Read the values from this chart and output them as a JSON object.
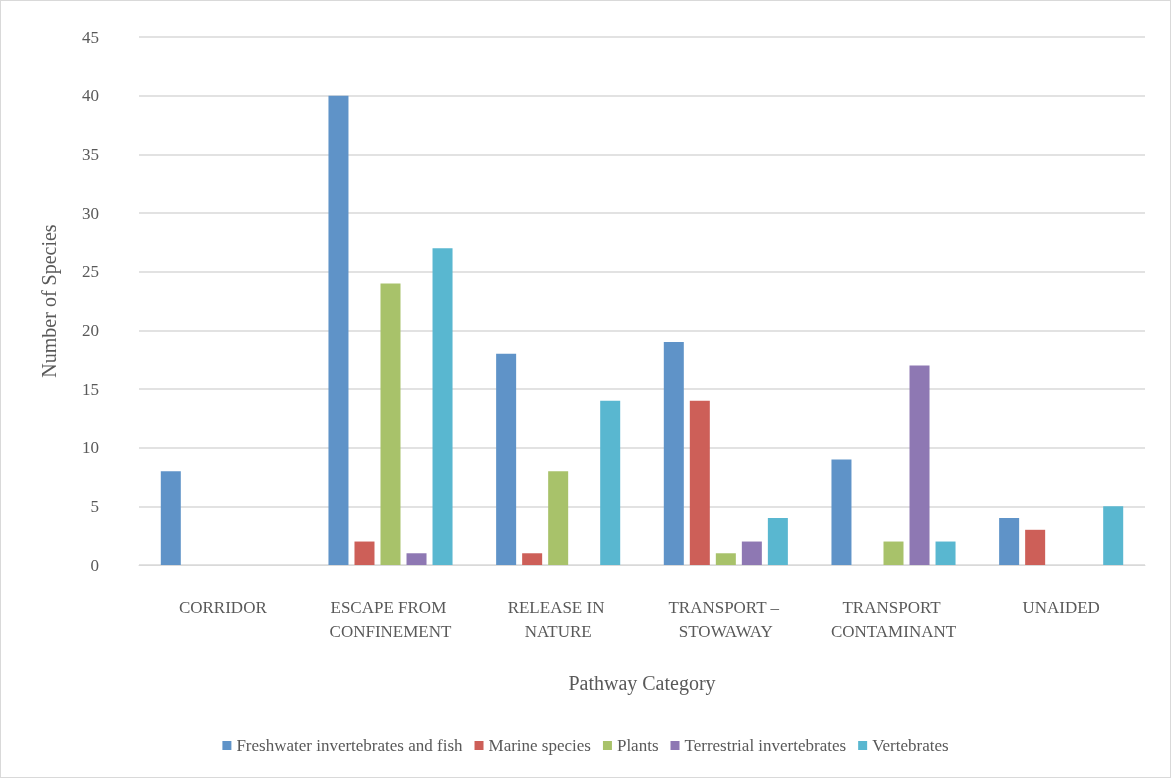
{
  "chart_data": {
    "type": "bar",
    "xlabel": "Pathway Category",
    "ylabel": "Number of Species",
    "categories": [
      "CORRIDOR",
      "ESCAPE FROM CONFINEMENT",
      "RELEASE IN NATURE",
      "TRANSPORT – STOWAWAY",
      "TRANSPORT CONTAMINANT",
      "UNAIDED"
    ],
    "series": [
      {
        "name": "Freshwater invertebrates and fish",
        "color": "#5f93c8",
        "values": [
          8,
          40,
          18,
          19,
          9,
          4
        ]
      },
      {
        "name": "Marine species",
        "color": "#cd5f58",
        "values": [
          0,
          2,
          1,
          14,
          0,
          3
        ]
      },
      {
        "name": "Plants",
        "color": "#a8c26a",
        "values": [
          0,
          24,
          8,
          1,
          2,
          0
        ]
      },
      {
        "name": "Terrestrial invertebrates",
        "color": "#8e78b3",
        "values": [
          0,
          1,
          0,
          2,
          17,
          0
        ]
      },
      {
        "name": "Vertebrates",
        "color": "#59b7d0",
        "values": [
          0,
          27,
          14,
          4,
          2,
          5
        ]
      }
    ],
    "ylim": [
      0,
      45
    ],
    "yticks": [
      0,
      5,
      10,
      15,
      20,
      25,
      30,
      35,
      40,
      45
    ],
    "grid": "y",
    "legend": "bottom"
  }
}
